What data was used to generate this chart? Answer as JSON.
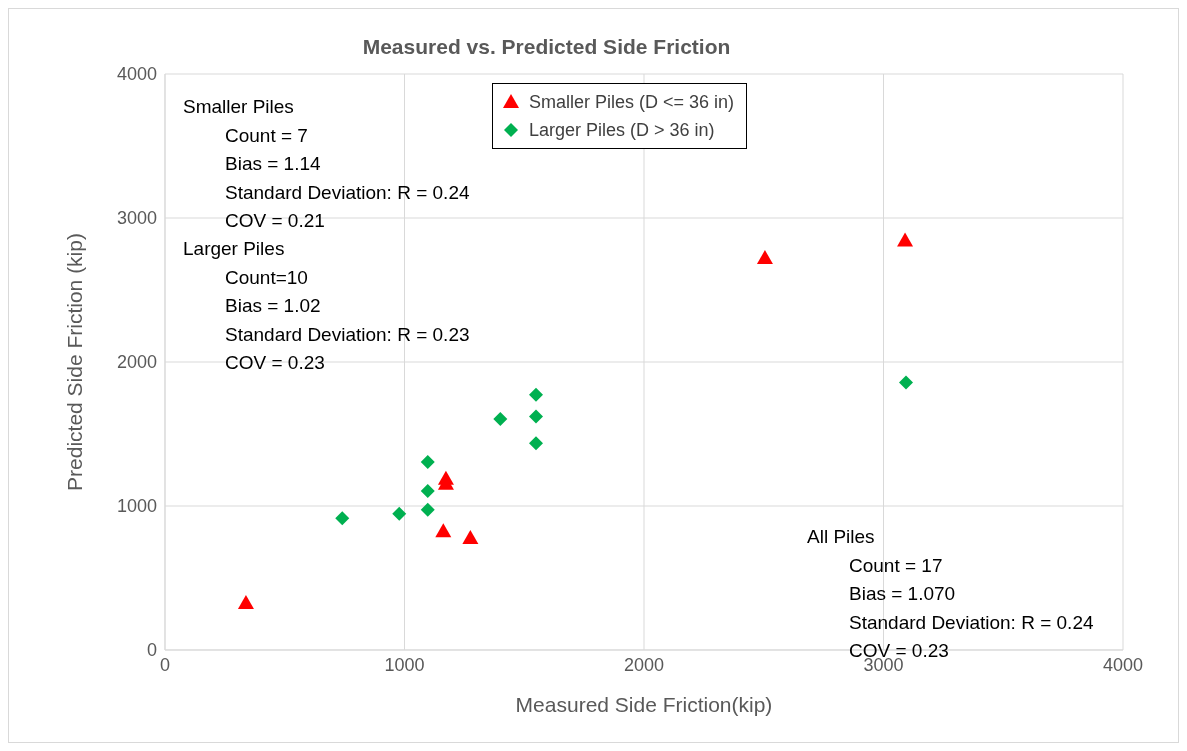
{
  "chart_data": {
    "type": "scatter",
    "title": "Measured vs. Predicted Side Friction",
    "xlabel": "Measured Side Friction(kip)",
    "ylabel": "Predicted  Side Friction (kip)",
    "xlim": [
      0,
      4000
    ],
    "xticks": [
      0,
      1000,
      2000,
      3000,
      4000
    ],
    "ylim": [
      0,
      4000
    ],
    "yticks": [
      0,
      1000,
      2000,
      3000,
      4000
    ],
    "grid": true,
    "legend": "top",
    "series": [
      {
        "name": "Smaller Piles (D <= 36 in)",
        "color": "#ff0000",
        "marker": "triangle",
        "x": [
          338,
          1162,
          1275,
          1173,
          1173,
          2505,
          3090
        ],
        "values": [
          326,
          824,
          778,
          1190,
          1155,
          2722,
          2844
        ]
      },
      {
        "name": "Larger Piles (D > 36 in)",
        "color": "#00b050",
        "marker": "diamond",
        "x": [
          740,
          978,
          1097,
          1097,
          1097,
          1400,
          1549,
          1549,
          1549,
          3094
        ],
        "values": [
          915,
          946,
          974,
          1104,
          1306,
          1604,
          1773,
          1622,
          1435,
          1858
        ]
      }
    ],
    "annotations": [
      "Smaller Piles\nCount = 7\nBias = 1.14\nStandard Deviation: R = 0.24\nCOV = 0.21",
      "Larger Piles\nCount=10\nBias = 1.02\nStandard Deviation: R = 0.23\nCOV = 0.23",
      "All Piles\nCount = 17\nBias = 1.070\nStandard Deviation: R = 0.24\nCOV = 0.23"
    ]
  }
}
